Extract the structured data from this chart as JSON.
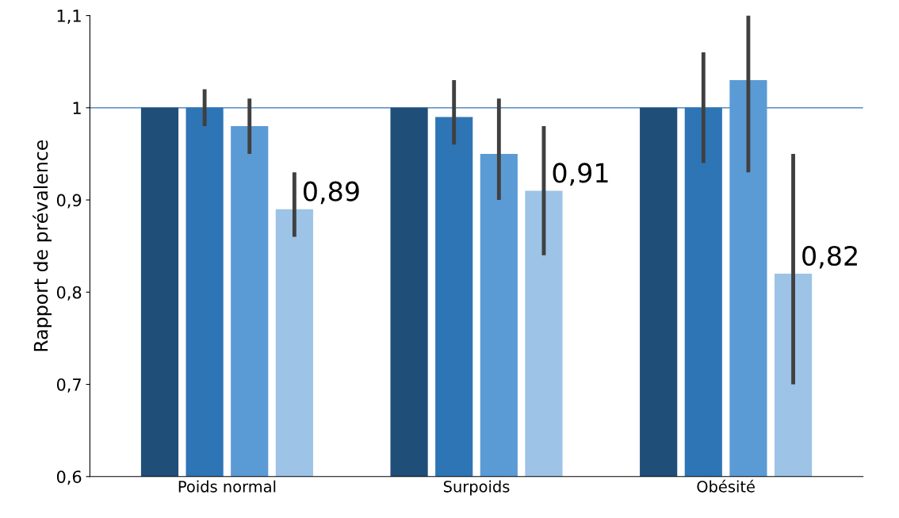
{
  "chart_data": {
    "type": "bar",
    "ylabel": "Rapport de prévalence",
    "categories": [
      "Poids normal",
      "Surpoids",
      "Obésité"
    ],
    "series": [
      {
        "color": "#1f4e79",
        "values": [
          1,
          1,
          1
        ]
      },
      {
        "color": "#2e75b6",
        "values": [
          1,
          0.99,
          1
        ],
        "errors": [
          [
            0.98,
            1.02
          ],
          [
            0.96,
            1.03
          ],
          [
            0.94,
            1.06
          ]
        ]
      },
      {
        "color": "#5b9bd5",
        "values": [
          0.98,
          0.95,
          1.03
        ],
        "errors": [
          [
            0.95,
            1.01
          ],
          [
            0.9,
            1.01
          ],
          [
            0.93,
            1.1
          ]
        ]
      },
      {
        "color": "#9dc3e6",
        "values": [
          0.89,
          0.91,
          0.82
        ],
        "errors": [
          [
            0.86,
            0.93
          ],
          [
            0.84,
            0.98
          ],
          [
            0.7,
            0.95
          ]
        ],
        "value_labels": [
          "0,89",
          "0,91",
          "0,82"
        ]
      }
    ],
    "ylim": [
      0.6,
      1.1
    ],
    "yticks": [
      {
        "value": 0.6,
        "label": "0,6"
      },
      {
        "value": 0.7,
        "label": "0,7"
      },
      {
        "value": 0.8,
        "label": "0,8"
      },
      {
        "value": 0.9,
        "label": "0,9"
      },
      {
        "value": 1,
        "label": "1"
      },
      {
        "value": 1.1,
        "label": "1,1"
      }
    ],
    "ref_lines": [
      {
        "axis": "y",
        "value": 1,
        "color": "#2e75b6",
        "line_style": "solid"
      }
    ],
    "grid": false,
    "legend": false
  }
}
